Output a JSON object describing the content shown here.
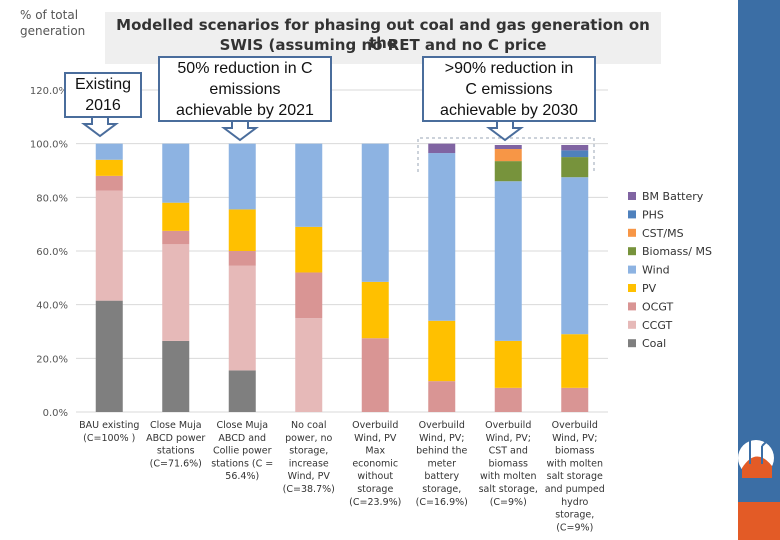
{
  "header": {
    "y_axis_label_line1": "% of total",
    "y_axis_label_line2": "generation",
    "title_line1": "Modelled scenarios for phasing out coal and gas generation on the",
    "title_line2": "SWIS (assuming no RET and no C price"
  },
  "callouts": {
    "existing_line1": "Existing",
    "existing_line2": "2016",
    "reduction50_line1": "50% reduction in C",
    "reduction50_line2": "emissions",
    "reduction50_line3": "achievable by 2021",
    "reduction90_line1": ">90% reduction in",
    "reduction90_line2": "C emissions",
    "reduction90_line3": "achievable by 2030"
  },
  "chart_data": {
    "type": "bar",
    "stacked": true,
    "title": "Modelled scenarios for phasing out coal and gas generation on the SWIS (assuming no RET and no C price",
    "ylabel": "% of total generation",
    "ylim": [
      0,
      120
    ],
    "yticks": [
      "0.0%",
      "20.0%",
      "40.0%",
      "60.0%",
      "80.0%",
      "100.0%",
      "120.0%"
    ],
    "legend_position": "right",
    "categories": [
      [
        "BAU existing",
        "(C=100% )"
      ],
      [
        "Close Muja",
        "ABCD power",
        "stations",
        "(C=71.6%)"
      ],
      [
        "Close Muja",
        "ABCD and",
        "Collie power",
        "stations (C =",
        "56.4%)"
      ],
      [
        "No coal",
        "power, no",
        "storage,",
        "increase",
        "Wind, PV",
        "(C=38.7%)"
      ],
      [
        "Overbuild",
        "Wind, PV",
        "Max",
        "economic",
        "without",
        "storage",
        "(C=23.9%)"
      ],
      [
        "Overbuild",
        "Wind, PV;",
        "behind the",
        "meter",
        "battery",
        "storage,",
        "(C=16.9%)"
      ],
      [
        "Overbuild",
        "Wind, PV;",
        "CST and",
        "biomass",
        "with molten",
        "salt storage,",
        "(C=9%)"
      ],
      [
        "Overbuild",
        "Wind, PV;",
        "biomass",
        "with molten",
        "salt storage",
        "and pumped",
        "hydro",
        "storage,",
        "(C=9%)"
      ]
    ],
    "series": [
      {
        "name": "Coal",
        "color": "#7f7f7f",
        "values": [
          41.5,
          26.5,
          15.5,
          0,
          0,
          0,
          0,
          0
        ]
      },
      {
        "name": "CCGT",
        "color": "#e6b9b8",
        "values": [
          41,
          36,
          39,
          35,
          0,
          0,
          0,
          0
        ]
      },
      {
        "name": "OCGT",
        "color": "#d99594",
        "values": [
          5.5,
          5,
          5.5,
          17,
          27.5,
          11.5,
          9,
          9
        ]
      },
      {
        "name": "PV",
        "color": "#ffc000",
        "values": [
          6,
          10.5,
          15.5,
          17,
          21,
          22.5,
          17.5,
          20
        ]
      },
      {
        "name": "Wind",
        "color": "#8db3e2",
        "values": [
          6,
          22,
          24.5,
          31,
          51.5,
          62.5,
          59.5,
          58.5
        ]
      },
      {
        "name": "Biomass/ MS",
        "color": "#77933c",
        "values": [
          0,
          0,
          0,
          0,
          0,
          0,
          7.5,
          7.5
        ]
      },
      {
        "name": "CST/MS",
        "color": "#f79646",
        "values": [
          0,
          0,
          0,
          0,
          0,
          0,
          4.5,
          0
        ]
      },
      {
        "name": "PHS",
        "color": "#4f81bd",
        "values": [
          0,
          0,
          0,
          0,
          0,
          0,
          0,
          2.5
        ]
      },
      {
        "name": "BM Battery",
        "color": "#8064a2",
        "values": [
          0,
          0,
          0,
          0,
          0,
          3.5,
          1.5,
          2
        ]
      }
    ]
  }
}
